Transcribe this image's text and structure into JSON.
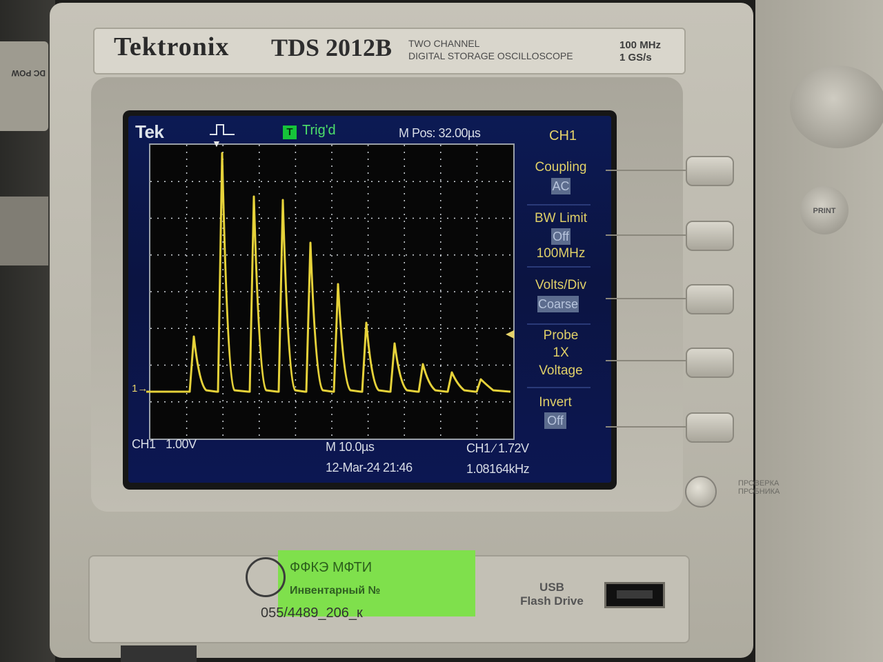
{
  "scene": {
    "description_hidden": false
  },
  "device": {
    "brand": "Tektronix",
    "model": "TDS 2012B",
    "desc_line1": "TWO CHANNEL",
    "desc_line2": "DIGITAL STORAGE OSCILLOSCOPE",
    "spec_line1": "100 MHz",
    "spec_line2": "1 GS/s"
  },
  "screen": {
    "logo": "Tek",
    "trigger_status_icon": "T",
    "trigger_status": "Trig'd",
    "m_pos": "M Pos: 32.00µs",
    "channel_title": "CH1",
    "channel_marker": "1→",
    "menu": [
      {
        "label": "Coupling",
        "value": "AC",
        "extra": ""
      },
      {
        "label": "BW Limit",
        "value": "Off",
        "extra": "100MHz"
      },
      {
        "label": "Volts/Div",
        "value": "Coarse",
        "extra": ""
      },
      {
        "label": "Probe",
        "value": "",
        "extra": "1X",
        "extra2": "Voltage"
      },
      {
        "label": "Invert",
        "value": "Off",
        "extra": ""
      }
    ],
    "bottom": {
      "channel": "CH1",
      "volts": "1.00V",
      "timebase": "M 10.0µs",
      "trigger": "CH1 ∕ 1.72V",
      "date": "12-Mar-24 21:46",
      "frequency": "1.08164kHz"
    },
    "trace_color": "#e6d23a"
  },
  "labels": {
    "sticker_line1": "ФФКЭ МФТИ",
    "sticker_line2": "Инвентарный №",
    "inventory_number": "055/4489_206_к",
    "usb_line1": "USB",
    "usb_line2": "Flash Drive",
    "print_button": "PRINT",
    "left_device_text": "DC POW",
    "probe_text1": "ПРОВЕРКА",
    "probe_text2": "ПРОБНИКА"
  }
}
